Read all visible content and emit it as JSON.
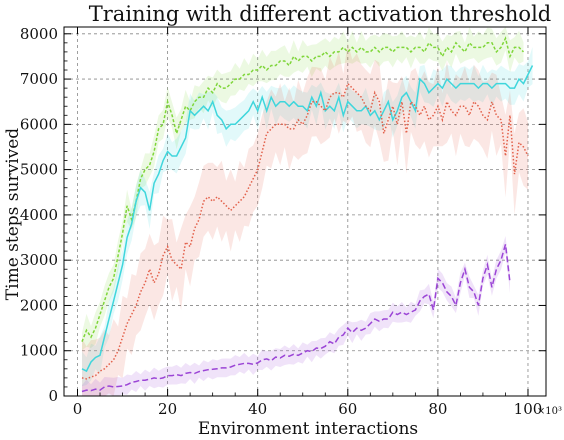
{
  "chart_data": {
    "type": "line",
    "title": "Training with different activation threshold",
    "xlabel": "Environment interactions",
    "ylabel": "Time steps survived",
    "x_multiplier_label": "×10³",
    "xlim": [
      -3,
      104
    ],
    "ylim": [
      0,
      8150
    ],
    "xticks": [
      0,
      20,
      40,
      60,
      80,
      100
    ],
    "yticks": [
      0,
      1000,
      2000,
      3000,
      4000,
      5000,
      6000,
      7000,
      8000
    ],
    "grid": true,
    "series": [
      {
        "color": "#7fd63a",
        "dash": "3,2",
        "x": [
          1,
          2,
          3,
          4,
          5,
          6,
          7,
          8,
          9,
          10,
          11,
          12,
          13,
          14,
          15,
          16,
          17,
          18,
          19,
          20,
          21,
          22,
          23,
          24,
          25,
          26,
          27,
          28,
          29,
          30,
          31,
          32,
          33,
          34,
          35,
          36,
          37,
          38,
          39,
          40,
          41,
          42,
          43,
          44,
          45,
          46,
          47,
          48,
          49,
          50,
          51,
          52,
          53,
          54,
          55,
          56,
          57,
          58,
          59,
          60,
          61,
          62,
          63,
          64,
          65,
          66,
          67,
          68,
          69,
          70,
          71,
          72,
          73,
          74,
          75,
          76,
          77,
          78,
          79,
          80,
          81,
          82,
          83,
          84,
          85,
          86,
          87,
          88,
          89,
          90,
          91,
          92,
          93,
          94,
          95,
          96,
          97,
          98,
          99
        ],
        "y": [
          1200,
          1450,
          1300,
          1500,
          1800,
          2100,
          2400,
          2600,
          3100,
          3600,
          4200,
          3900,
          4300,
          4800,
          5000,
          5100,
          5400,
          5900,
          6000,
          6500,
          6200,
          5800,
          6100,
          6400,
          6300,
          6500,
          6600,
          6600,
          6800,
          6700,
          6900,
          6800,
          6800,
          6900,
          7000,
          7000,
          7100,
          7100,
          7200,
          7200,
          7300,
          7200,
          7300,
          7300,
          7400,
          7400,
          7300,
          7500,
          7400,
          7500,
          7500,
          7400,
          7500,
          7500,
          7600,
          7500,
          7600,
          7600,
          7700,
          7600,
          7700,
          7600,
          7700,
          7600,
          7600,
          7700,
          7600,
          7700,
          7700,
          7600,
          7700,
          7700,
          7700,
          7600,
          7700,
          7700,
          7600,
          7800,
          7700,
          7700,
          7500,
          7700,
          7600,
          7800,
          7700,
          7600,
          7800,
          7700,
          7700,
          7700,
          7800,
          7800,
          7600,
          7700,
          7900,
          7500,
          7700,
          7700,
          7600
        ],
        "band": 280
      },
      {
        "color": "#3fd6dc",
        "dash": "",
        "x": [
          1,
          2,
          3,
          4,
          5,
          6,
          7,
          8,
          9,
          10,
          11,
          12,
          13,
          14,
          15,
          16,
          17,
          18,
          19,
          20,
          21,
          22,
          23,
          24,
          25,
          26,
          27,
          28,
          29,
          30,
          31,
          32,
          33,
          34,
          35,
          36,
          37,
          38,
          39,
          40,
          41,
          42,
          43,
          44,
          45,
          46,
          47,
          48,
          49,
          50,
          51,
          52,
          53,
          54,
          55,
          56,
          57,
          58,
          59,
          60,
          61,
          62,
          63,
          64,
          65,
          66,
          67,
          68,
          69,
          70,
          71,
          72,
          73,
          74,
          75,
          76,
          77,
          78,
          79,
          80,
          81,
          82,
          83,
          84,
          85,
          86,
          87,
          88,
          89,
          90,
          91,
          92,
          93,
          94,
          95,
          96,
          97,
          98,
          99,
          100,
          101
        ],
        "y": [
          600,
          550,
          750,
          850,
          900,
          1300,
          1700,
          2100,
          2500,
          2900,
          3500,
          3800,
          4300,
          4600,
          4500,
          4100,
          4700,
          4900,
          5200,
          5400,
          5300,
          5300,
          5500,
          5700,
          6300,
          6200,
          6300,
          6400,
          6300,
          6500,
          6200,
          6100,
          5900,
          6000,
          6000,
          6100,
          6200,
          6300,
          6500,
          6300,
          6600,
          6300,
          6600,
          6400,
          6500,
          6500,
          6400,
          6500,
          6400,
          6400,
          6300,
          6600,
          6400,
          6700,
          6300,
          6400,
          6300,
          6600,
          6200,
          6500,
          6400,
          6300,
          6300,
          6400,
          6200,
          6300,
          6100,
          6300,
          6500,
          6100,
          6300,
          6600,
          6700,
          6500,
          6300,
          7000,
          6900,
          6700,
          6800,
          6900,
          6800,
          7000,
          6900,
          6800,
          6900,
          6900,
          6900,
          6900,
          6800,
          6900,
          6900,
          6800,
          6900,
          6900,
          6900,
          6800,
          6800,
          7000,
          6900,
          7100,
          7300
        ],
        "band": 320
      },
      {
        "color": "#e2604a",
        "dash": "1.5,2",
        "x": [
          1,
          2,
          3,
          4,
          5,
          6,
          7,
          8,
          9,
          10,
          11,
          12,
          13,
          14,
          15,
          16,
          17,
          18,
          19,
          20,
          21,
          22,
          23,
          24,
          25,
          26,
          27,
          28,
          29,
          30,
          31,
          32,
          33,
          34,
          35,
          36,
          37,
          38,
          39,
          40,
          41,
          42,
          43,
          44,
          45,
          46,
          47,
          48,
          49,
          50,
          51,
          52,
          53,
          54,
          55,
          56,
          57,
          58,
          59,
          60,
          61,
          62,
          63,
          64,
          65,
          66,
          67,
          68,
          69,
          70,
          71,
          72,
          73,
          74,
          75,
          76,
          77,
          78,
          79,
          80,
          81,
          82,
          83,
          84,
          85,
          86,
          87,
          88,
          89,
          90,
          91,
          92,
          93,
          94,
          95,
          96,
          97,
          98,
          99,
          100
        ],
        "y": [
          400,
          380,
          420,
          450,
          550,
          600,
          700,
          800,
          1000,
          1300,
          1600,
          1800,
          2000,
          2300,
          2500,
          2800,
          2500,
          2700,
          3100,
          3300,
          3000,
          2900,
          2800,
          3400,
          3300,
          3700,
          3900,
          4300,
          4400,
          4300,
          4400,
          4300,
          4200,
          4100,
          4200,
          4300,
          4400,
          4600,
          4800,
          5000,
          5400,
          5800,
          5900,
          6000,
          6000,
          6000,
          5900,
          5900,
          6100,
          6000,
          6200,
          6500,
          6500,
          6400,
          6300,
          6600,
          6700,
          6700,
          6600,
          6900,
          6800,
          6700,
          6600,
          6400,
          6300,
          6700,
          6500,
          5800,
          6100,
          6400,
          6000,
          6500,
          5800,
          6500,
          6400,
          6200,
          6400,
          6100,
          6200,
          6400,
          6100,
          6500,
          6300,
          6200,
          6400,
          6400,
          6200,
          6500,
          6400,
          6200,
          6100,
          6500,
          6200,
          6100,
          5300,
          6200,
          4900,
          5600,
          5500,
          5300
        ],
        "band": 700
      },
      {
        "color": "#9b45d6",
        "dash": "6,3",
        "x": [
          1,
          2,
          3,
          4,
          5,
          6,
          7,
          8,
          9,
          10,
          11,
          12,
          13,
          14,
          15,
          16,
          17,
          18,
          19,
          20,
          21,
          22,
          23,
          24,
          25,
          26,
          27,
          28,
          29,
          30,
          31,
          32,
          33,
          34,
          35,
          36,
          37,
          38,
          39,
          40,
          41,
          42,
          43,
          44,
          45,
          46,
          47,
          48,
          49,
          50,
          51,
          52,
          53,
          54,
          55,
          56,
          57,
          58,
          59,
          60,
          61,
          62,
          63,
          64,
          65,
          66,
          67,
          68,
          69,
          70,
          71,
          72,
          73,
          74,
          75,
          76,
          77,
          78,
          79,
          80,
          81,
          82,
          83,
          84,
          85,
          86,
          87,
          88,
          89,
          90,
          91,
          92,
          93,
          94,
          95,
          96
        ],
        "y": [
          100,
          130,
          120,
          150,
          130,
          200,
          220,
          200,
          210,
          220,
          250,
          300,
          320,
          350,
          350,
          370,
          400,
          380,
          400,
          450,
          450,
          470,
          450,
          500,
          520,
          500,
          540,
          560,
          580,
          590,
          600,
          620,
          620,
          640,
          680,
          700,
          720,
          720,
          700,
          730,
          800,
          820,
          780,
          860,
          840,
          900,
          880,
          920,
          900,
          950,
          1000,
          980,
          1060,
          1050,
          1100,
          1200,
          1150,
          1300,
          1350,
          1500,
          1400,
          1500,
          1450,
          1500,
          1600,
          1700,
          1650,
          1700,
          1700,
          1850,
          1800,
          1850,
          1800,
          1850,
          1900,
          2100,
          2200,
          2250,
          1900,
          2600,
          2500,
          2300,
          2200,
          2000,
          2500,
          2800,
          2400,
          2300,
          2000,
          2600,
          2900,
          2400,
          2800,
          3000,
          3350,
          2500
        ],
        "band": 180
      }
    ]
  }
}
